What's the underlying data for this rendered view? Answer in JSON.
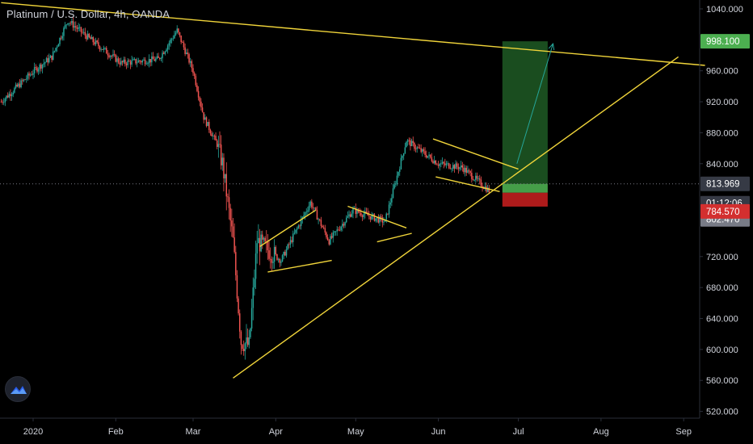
{
  "title": "Platinum / U.S. Dollar, 4h, OANDA",
  "colors": {
    "background": "#000000",
    "axis_text": "#d1d4dc",
    "up_candle": "#26a69a",
    "down_candle": "#ef5350",
    "trendline": "#f0d43a",
    "target_zone": "#1e5a24",
    "target_price": "#4caf50",
    "stop_zone": "#b71c1c",
    "stop_price": "#d32f2f",
    "last_price": "#363a45",
    "countdown": "#363a45",
    "current_price": "#787b86",
    "arrow": "#26a69a"
  },
  "chart_data": {
    "type": "candlestick",
    "symbol": "Platinum / U.S. Dollar",
    "interval": "4h",
    "source": "OANDA",
    "y_axis": {
      "ticks": [
        "1040.000",
        "998.100",
        "960.000",
        "920.000",
        "880.000",
        "840.000",
        "813.969",
        "802.470",
        "784.570",
        "720.000",
        "680.000",
        "640.000",
        "600.000",
        "560.000",
        "520.000"
      ],
      "range": [
        514,
        1046
      ]
    },
    "x_axis": {
      "ticks": [
        "2020",
        "Feb",
        "Mar",
        "Apr",
        "May",
        "Jun",
        "Jul",
        "Aug",
        "Sep"
      ]
    },
    "price_path": [
      {
        "date": "2019-12-20",
        "price": 920
      },
      {
        "date": "2020-01-02",
        "price": 962
      },
      {
        "date": "2020-01-08",
        "price": 978
      },
      {
        "date": "2020-01-14",
        "price": 1025
      },
      {
        "date": "2020-01-22",
        "price": 1002
      },
      {
        "date": "2020-02-03",
        "price": 970
      },
      {
        "date": "2020-02-17",
        "price": 975
      },
      {
        "date": "2020-02-24",
        "price": 1012
      },
      {
        "date": "2020-03-01",
        "price": 960
      },
      {
        "date": "2020-03-05",
        "price": 900
      },
      {
        "date": "2020-03-10",
        "price": 865
      },
      {
        "date": "2020-03-12",
        "price": 840
      },
      {
        "date": "2020-03-16",
        "price": 740
      },
      {
        "date": "2020-03-19",
        "price": 610
      },
      {
        "date": "2020-03-22",
        "price": 605
      },
      {
        "date": "2020-03-25",
        "price": 740
      },
      {
        "date": "2020-04-03",
        "price": 715
      },
      {
        "date": "2020-04-14",
        "price": 790
      },
      {
        "date": "2020-04-21",
        "price": 740
      },
      {
        "date": "2020-04-30",
        "price": 780
      },
      {
        "date": "2020-05-12",
        "price": 765
      },
      {
        "date": "2020-05-20",
        "price": 870
      },
      {
        "date": "2020-06-01",
        "price": 840
      },
      {
        "date": "2020-06-10",
        "price": 835
      },
      {
        "date": "2020-06-20",
        "price": 805
      }
    ],
    "trendlines": [
      {
        "name": "upper",
        "from": {
          "date": "2019-12-20",
          "price": 1048
        },
        "to": {
          "date": "2020-09-09",
          "price": 967
        }
      },
      {
        "name": "support",
        "from": {
          "date": "2020-03-16",
          "price": 563
        },
        "to": {
          "date": "2020-08-30",
          "price": 978
        }
      },
      {
        "name": "channel-top-1",
        "from": {
          "date": "2020-03-26",
          "price": 733
        },
        "to": {
          "date": "2020-04-16",
          "price": 780
        }
      },
      {
        "name": "channel-bottom-1",
        "from": {
          "date": "2020-03-29",
          "price": 700
        },
        "to": {
          "date": "2020-04-22",
          "price": 715
        }
      },
      {
        "name": "channel-top-2",
        "from": {
          "date": "2020-04-28",
          "price": 785
        },
        "to": {
          "date": "2020-05-20",
          "price": 757
        }
      },
      {
        "name": "channel-bottom-2",
        "from": {
          "date": "2020-05-09",
          "price": 739
        },
        "to": {
          "date": "2020-05-22",
          "price": 750
        }
      },
      {
        "name": "flag-top",
        "from": {
          "date": "2020-05-30",
          "price": 872
        },
        "to": {
          "date": "2020-07-01",
          "price": 833
        }
      },
      {
        "name": "flag-bottom",
        "from": {
          "date": "2020-05-31",
          "price": 823
        },
        "to": {
          "date": "2020-06-24",
          "price": 804
        }
      }
    ],
    "position": {
      "type": "long",
      "entry": 813.969,
      "target": 998.1,
      "stop": 784.57,
      "current": 802.47,
      "countdown": "01:12:06",
      "start": "2020-06-25",
      "end": "2020-07-12",
      "projection_to": {
        "date": "2020-07-14",
        "price": 995
      }
    }
  }
}
